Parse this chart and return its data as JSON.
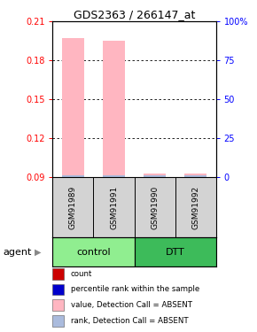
{
  "title": "GDS2363 / 266147_at",
  "samples": [
    "GSM91989",
    "GSM91991",
    "GSM91990",
    "GSM91992"
  ],
  "bar_values": [
    0.197,
    0.195,
    0.093,
    0.093
  ],
  "bar_color_absent": "#FFB6C1",
  "rank_color_absent": "#AABBDD",
  "ylim": [
    0.09,
    0.21
  ],
  "yticks": [
    0.09,
    0.12,
    0.15,
    0.18,
    0.21
  ],
  "right_yticks": [
    0,
    25,
    50,
    75,
    100
  ],
  "right_ytick_labels": [
    "0",
    "25",
    "50",
    "75",
    "100%"
  ],
  "bar_width": 0.55,
  "rank_bar_height": 0.0015,
  "bg_color": "#FFFFFF",
  "legend_items": [
    {
      "label": "count",
      "color": "#CC0000"
    },
    {
      "label": "percentile rank within the sample",
      "color": "#0000CC"
    },
    {
      "label": "value, Detection Call = ABSENT",
      "color": "#FFB6C1"
    },
    {
      "label": "rank, Detection Call = ABSENT",
      "color": "#AABBDD"
    }
  ],
  "sample_box_color": "#D3D3D3",
  "ctrl_color": "#90EE90",
  "dtt_color": "#3DBB5A",
  "agent_label": "agent"
}
